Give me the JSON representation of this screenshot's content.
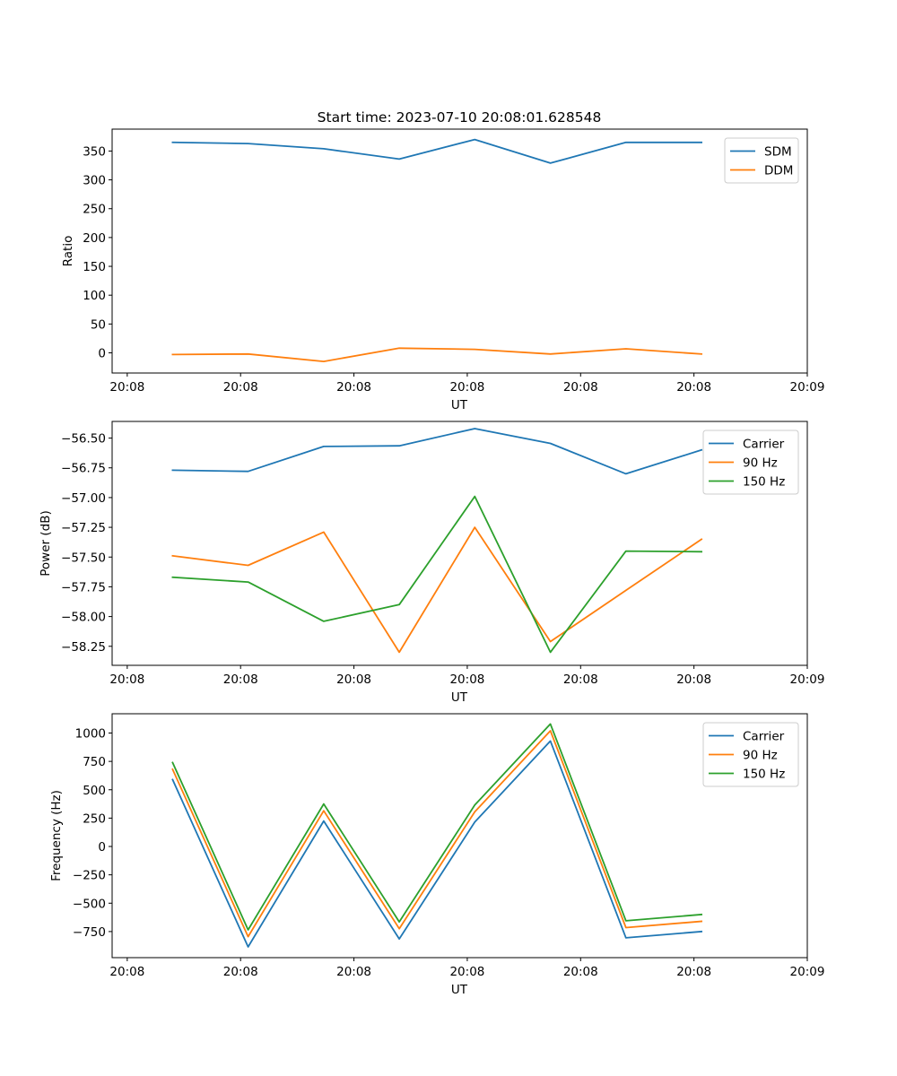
{
  "chart_data": [
    {
      "type": "line",
      "title": "Start time: 2023-07-10 20:08:01.628548",
      "xlabel": "UT",
      "ylabel": "Ratio",
      "x": [
        1,
        2,
        3,
        4,
        5,
        6,
        7,
        8
      ],
      "xlim": [
        0.2,
        9.4
      ],
      "x_ticks": [
        {
          "x": 0.4,
          "label": "20:08"
        },
        {
          "x": 1.9,
          "label": "20:08"
        },
        {
          "x": 3.4,
          "label": "20:08"
        },
        {
          "x": 4.9,
          "label": "20:08"
        },
        {
          "x": 6.4,
          "label": "20:08"
        },
        {
          "x": 7.9,
          "label": "20:08"
        },
        {
          "x": 9.4,
          "label": "20:09"
        }
      ],
      "ylim": [
        -35,
        388
      ],
      "y_ticks": [
        {
          "y": 0,
          "label": "0"
        },
        {
          "y": 50,
          "label": "50"
        },
        {
          "y": 100,
          "label": "100"
        },
        {
          "y": 150,
          "label": "150"
        },
        {
          "y": 200,
          "label": "200"
        },
        {
          "y": 250,
          "label": "250"
        },
        {
          "y": 300,
          "label": "300"
        },
        {
          "y": 350,
          "label": "350"
        }
      ],
      "legend_position": "upper right",
      "series": [
        {
          "name": "SDM",
          "color": "#1f77b4",
          "values": [
            365,
            363,
            354,
            336,
            370,
            329,
            365,
            365
          ]
        },
        {
          "name": "DDM",
          "color": "#ff7f0e",
          "values": [
            -3,
            -2,
            -15,
            8,
            6,
            -2,
            7,
            -2
          ]
        }
      ]
    },
    {
      "type": "line",
      "title": "",
      "xlabel": "UT",
      "ylabel": "Power (dB)",
      "x": [
        1,
        2,
        3,
        4,
        5,
        6,
        7,
        8
      ],
      "xlim": [
        0.2,
        9.4
      ],
      "x_ticks": [
        {
          "x": 0.4,
          "label": "20:08"
        },
        {
          "x": 1.9,
          "label": "20:08"
        },
        {
          "x": 3.4,
          "label": "20:08"
        },
        {
          "x": 4.9,
          "label": "20:08"
        },
        {
          "x": 6.4,
          "label": "20:08"
        },
        {
          "x": 7.9,
          "label": "20:08"
        },
        {
          "x": 9.4,
          "label": "20:09"
        }
      ],
      "ylim": [
        -58.41,
        -56.36
      ],
      "y_ticks": [
        {
          "y": -56.5,
          "label": "−56.50"
        },
        {
          "y": -56.75,
          "label": "−56.75"
        },
        {
          "y": -57.0,
          "label": "−57.00"
        },
        {
          "y": -57.25,
          "label": "−57.25"
        },
        {
          "y": -57.5,
          "label": "−57.50"
        },
        {
          "y": -57.75,
          "label": "−57.75"
        },
        {
          "y": -58.0,
          "label": "−58.00"
        },
        {
          "y": -58.25,
          "label": "−58.25"
        }
      ],
      "legend_position": "upper right",
      "series": [
        {
          "name": "Carrier",
          "color": "#1f77b4",
          "values": [
            -56.77,
            -56.78,
            -56.57,
            -56.565,
            -56.42,
            -56.545,
            -56.8,
            -56.6
          ]
        },
        {
          "name": "90 Hz",
          "color": "#ff7f0e",
          "values": [
            -57.49,
            -57.57,
            -57.29,
            -58.3,
            -57.25,
            -58.21,
            -57.78,
            -57.35
          ]
        },
        {
          "name": "150 Hz",
          "color": "#2ca02c",
          "values": [
            -57.67,
            -57.71,
            -58.04,
            -57.9,
            -56.99,
            -58.3,
            -57.45,
            -57.455
          ]
        }
      ]
    },
    {
      "type": "line",
      "title": "",
      "xlabel": "UT",
      "ylabel": "Frequency (Hz)",
      "x": [
        1,
        2,
        3,
        4,
        5,
        6,
        7,
        8
      ],
      "xlim": [
        0.2,
        9.4
      ],
      "x_ticks": [
        {
          "x": 0.4,
          "label": "20:08"
        },
        {
          "x": 1.9,
          "label": "20:08"
        },
        {
          "x": 3.4,
          "label": "20:08"
        },
        {
          "x": 4.9,
          "label": "20:08"
        },
        {
          "x": 6.4,
          "label": "20:08"
        },
        {
          "x": 7.9,
          "label": "20:08"
        },
        {
          "x": 9.4,
          "label": "20:09"
        }
      ],
      "ylim": [
        -980,
        1170
      ],
      "y_ticks": [
        {
          "y": -750,
          "label": "−750"
        },
        {
          "y": -500,
          "label": "−500"
        },
        {
          "y": -250,
          "label": "−250"
        },
        {
          "y": 0,
          "label": "0"
        },
        {
          "y": 250,
          "label": "250"
        },
        {
          "y": 500,
          "label": "500"
        },
        {
          "y": 750,
          "label": "750"
        },
        {
          "y": 1000,
          "label": "1000"
        }
      ],
      "legend_position": "upper right",
      "series": [
        {
          "name": "Carrier",
          "color": "#1f77b4",
          "values": [
            590,
            -885,
            225,
            -815,
            215,
            930,
            -805,
            -750
          ]
        },
        {
          "name": "90 Hz",
          "color": "#ff7f0e",
          "values": [
            680,
            -795,
            315,
            -725,
            305,
            1020,
            -715,
            -660
          ]
        },
        {
          "name": "150 Hz",
          "color": "#2ca02c",
          "values": [
            740,
            -735,
            375,
            -665,
            365,
            1080,
            -655,
            -600
          ]
        }
      ]
    }
  ]
}
